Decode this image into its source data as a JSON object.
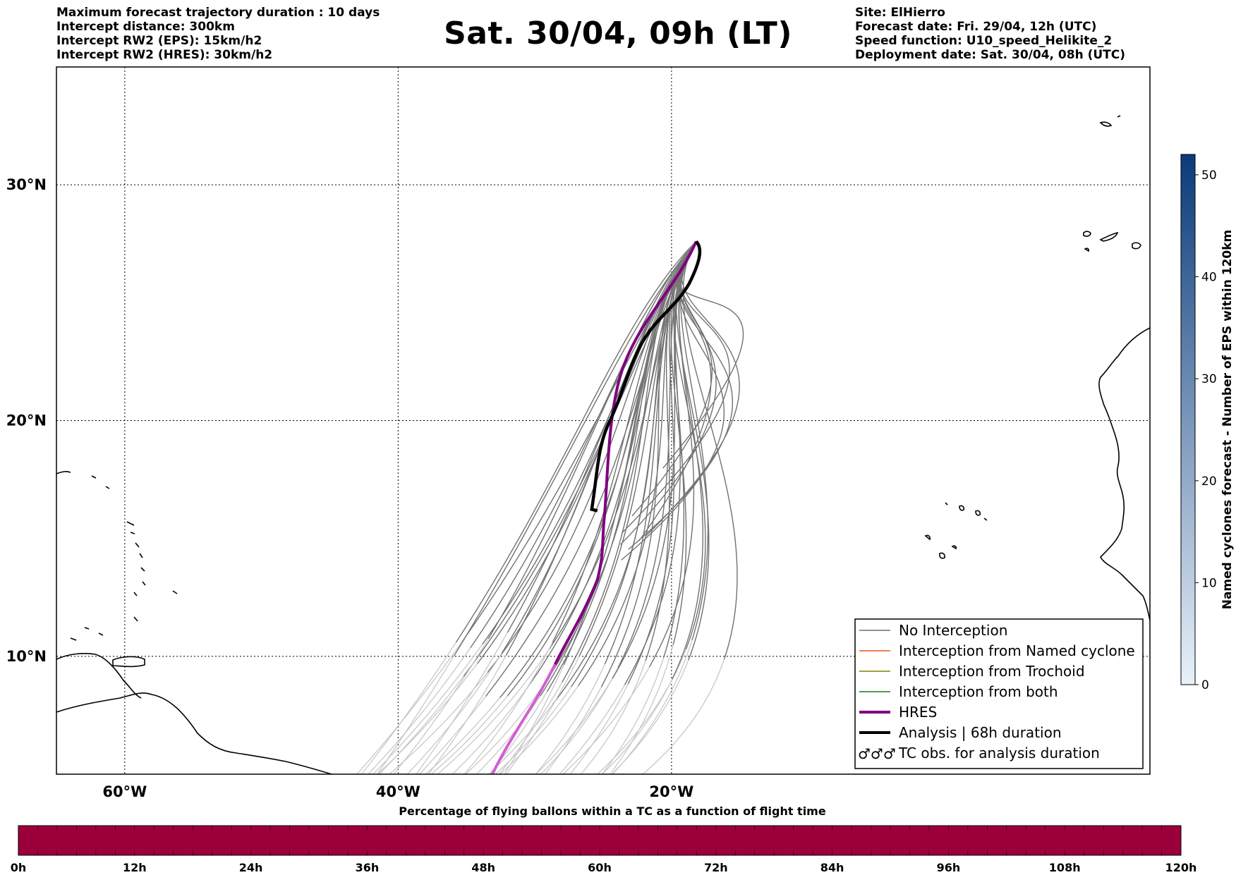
{
  "header": {
    "left_lines": [
      "Maximum forecast trajectory duration : 10 days",
      "Intercept distance: 300km",
      "Intercept RW2 (EPS):  15km/h2",
      "Intercept RW2 (HRES): 30km/h2"
    ],
    "title": "Sat. 30/04, 09h (LT)",
    "right_lines": [
      "Site: ElHierro",
      "Forecast date: Fri. 29/04, 12h (UTC)",
      "Speed function: U10_speed_Helikite_2",
      "Deployment date: Sat. 30/04, 08h (UTC)"
    ]
  },
  "map": {
    "lon_range": [
      -65,
      15
    ],
    "lat_range": [
      5,
      35
    ],
    "meridians": [
      -60,
      -40,
      -20
    ],
    "parallels": [
      10,
      20,
      30
    ],
    "lon_labels": [
      "60°W",
      "40°W",
      "20°W"
    ],
    "lat_labels": [
      "10°N",
      "20°N",
      "30°N"
    ],
    "launch_site": {
      "lon": -18.2,
      "lat": 27.6
    },
    "colors": {
      "no_interception": "#6e6e6e",
      "no_interception_late": "#c8c8c8",
      "named_cyclone": "#e8561c",
      "trochoid": "#808000",
      "both": "#1a7a1a",
      "hres": "#800080",
      "hres_late": "#d060d0",
      "analysis": "#000000"
    }
  },
  "legend": {
    "items": [
      {
        "label": "No Interception",
        "style": "thin-gray"
      },
      {
        "label": "Interception from Named cyclone",
        "style": "thin-orange"
      },
      {
        "label": "Interception from Trochoid",
        "style": "thin-olive"
      },
      {
        "label": "Interception from both",
        "style": "thin-green"
      },
      {
        "label": "HRES",
        "style": "thick-purple"
      },
      {
        "label": "Analysis | 68h duration",
        "style": "thick-black"
      },
      {
        "label": "TC obs. for analysis duration",
        "style": "symbol"
      }
    ],
    "symbol_glyph": "♂♂♂"
  },
  "colorbar_right": {
    "label": "Named cyclones forecast - Number of EPS within 120km",
    "ticks": [
      "0",
      "10",
      "20",
      "30",
      "40",
      "50"
    ],
    "range": [
      0,
      52
    ],
    "color_low": "#e9f1fa",
    "color_high": "#0a3b7a"
  },
  "bottom_bar": {
    "title": "Percentage of flying ballons within a TC as a function of flight time",
    "ticks": [
      "0h",
      "12h",
      "24h",
      "36h",
      "48h",
      "60h",
      "72h",
      "84h",
      "96h",
      "108h",
      "120h"
    ],
    "fill_color": "#9b003a"
  }
}
